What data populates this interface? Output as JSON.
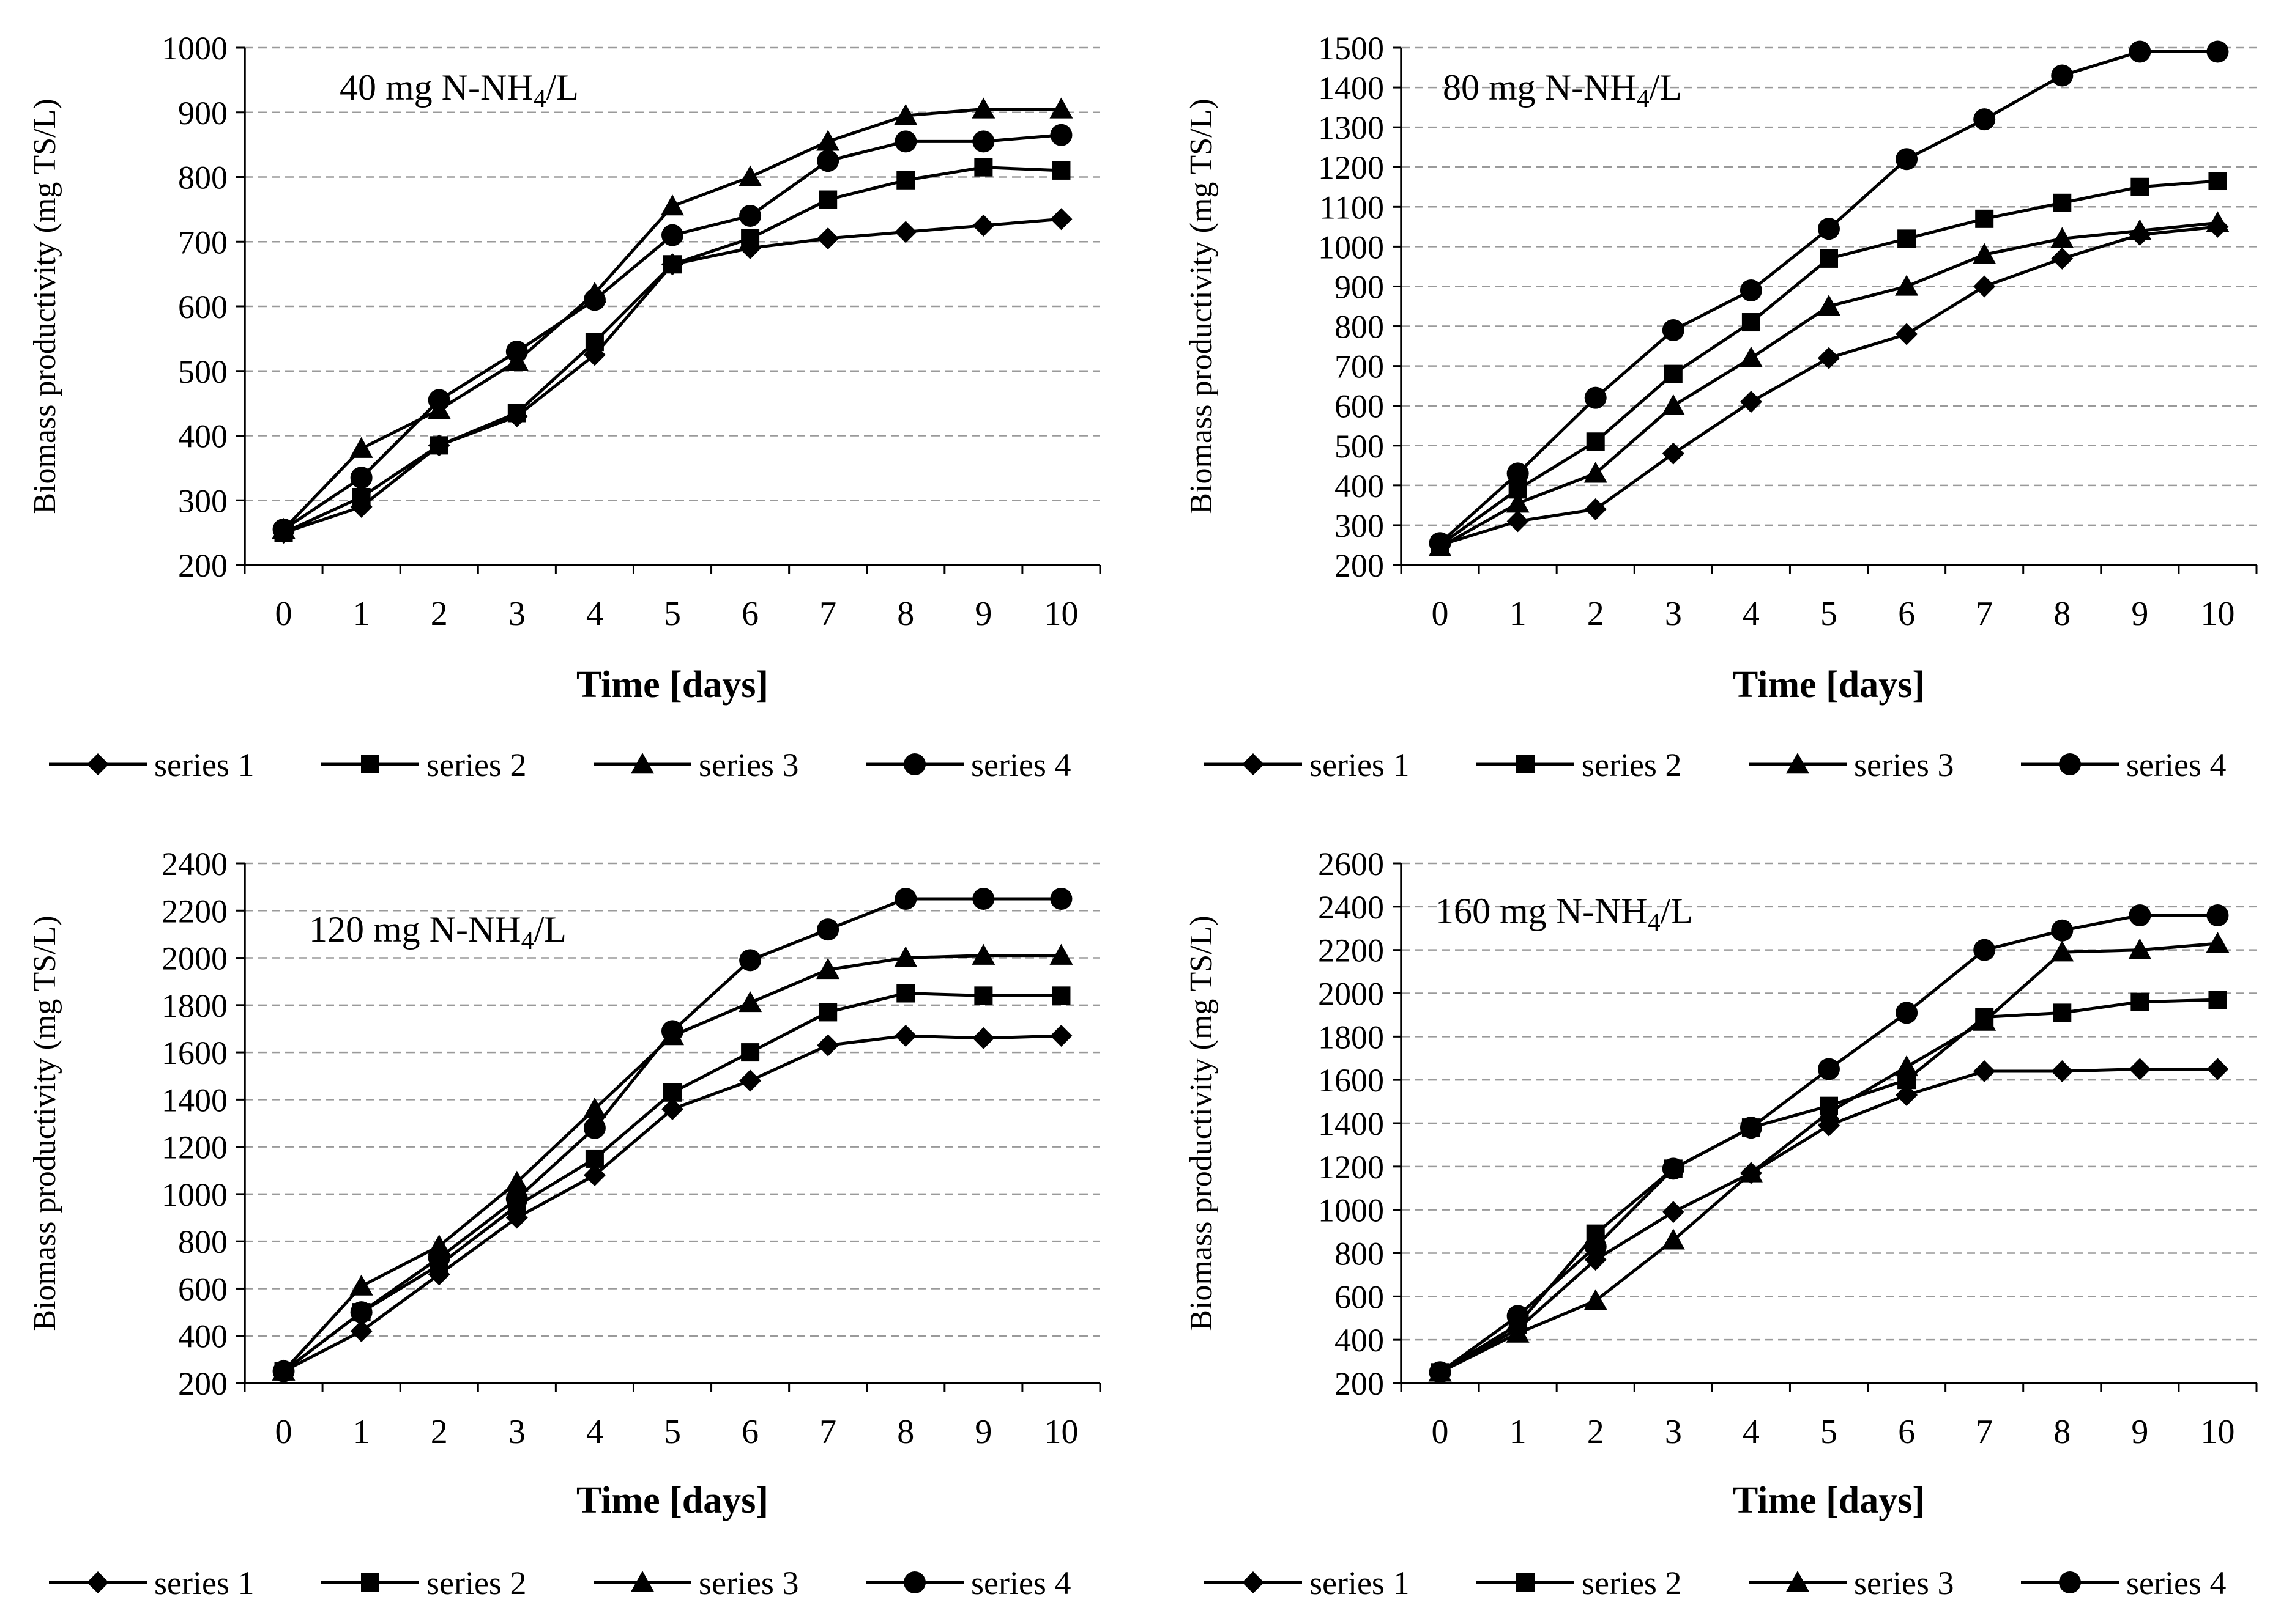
{
  "figure": {
    "xlabel": "Time [days]",
    "ylabel": "Biomass productivity (mg TS/L)",
    "legend": [
      "series 1",
      "series 2",
      "series 3",
      "series 4"
    ],
    "markers": [
      "diamond",
      "square",
      "triangle",
      "circle"
    ],
    "line_color": "#000000",
    "grid_color": "#9a9a9a"
  },
  "chart_data": [
    {
      "type": "line",
      "title_pre": "40 mg N-NH",
      "title_sub": "4",
      "title_post": "/L",
      "xlabel": "Time [days]",
      "ylabel": "Biomass productivity (mg TS/L)",
      "x": [
        0,
        1,
        2,
        3,
        4,
        5,
        6,
        7,
        8,
        9,
        10
      ],
      "ylim": [
        200,
        1000
      ],
      "ytick_step": 100,
      "series": [
        {
          "name": "series 1",
          "marker": "diamond",
          "values": [
            250,
            290,
            385,
            430,
            525,
            665,
            690,
            705,
            715,
            725,
            735
          ]
        },
        {
          "name": "series 2",
          "marker": "square",
          "values": [
            250,
            305,
            385,
            435,
            545,
            665,
            705,
            765,
            795,
            815,
            810
          ]
        },
        {
          "name": "series 3",
          "marker": "triangle",
          "values": [
            255,
            380,
            440,
            515,
            620,
            755,
            800,
            855,
            895,
            905,
            905
          ]
        },
        {
          "name": "series 4",
          "marker": "circle",
          "values": [
            255,
            335,
            455,
            530,
            610,
            710,
            740,
            825,
            855,
            855,
            865
          ]
        }
      ]
    },
    {
      "type": "line",
      "title_pre": "80 mg N-NH",
      "title_sub": "4",
      "title_post": "/L",
      "xlabel": "Time [days]",
      "ylabel": "Biomass productivity (mg TS/L)",
      "x": [
        0,
        1,
        2,
        3,
        4,
        5,
        6,
        7,
        8,
        9,
        10
      ],
      "ylim": [
        200,
        1500
      ],
      "ytick_step": 100,
      "series": [
        {
          "name": "series 1",
          "marker": "diamond",
          "values": [
            250,
            310,
            340,
            480,
            610,
            720,
            780,
            900,
            970,
            1030,
            1050
          ]
        },
        {
          "name": "series 2",
          "marker": "square",
          "values": [
            250,
            390,
            510,
            680,
            810,
            970,
            1020,
            1070,
            1110,
            1150,
            1165
          ]
        },
        {
          "name": "series 3",
          "marker": "triangle",
          "values": [
            245,
            355,
            430,
            600,
            720,
            850,
            900,
            980,
            1020,
            1040,
            1060
          ]
        },
        {
          "name": "series 4",
          "marker": "circle",
          "values": [
            255,
            430,
            620,
            790,
            890,
            1045,
            1220,
            1320,
            1430,
            1490,
            1490
          ]
        }
      ]
    },
    {
      "type": "line",
      "title_pre": "120 mg N-NH",
      "title_sub": "4",
      "title_post": "/L",
      "xlabel": "Time [days]",
      "ylabel": "Biomass productivity (mg TS/L)",
      "x": [
        0,
        1,
        2,
        3,
        4,
        5,
        6,
        7,
        8,
        9,
        10
      ],
      "ylim": [
        200,
        2400
      ],
      "ytick_step": 200,
      "series": [
        {
          "name": "series 1",
          "marker": "diamond",
          "values": [
            250,
            420,
            660,
            900,
            1080,
            1360,
            1480,
            1630,
            1670,
            1660,
            1670
          ]
        },
        {
          "name": "series 2",
          "marker": "square",
          "values": [
            250,
            500,
            700,
            950,
            1150,
            1430,
            1600,
            1770,
            1850,
            1840,
            1840
          ]
        },
        {
          "name": "series 3",
          "marker": "triangle",
          "values": [
            250,
            610,
            780,
            1050,
            1360,
            1670,
            1810,
            1950,
            2000,
            2010,
            2010
          ]
        },
        {
          "name": "series 4",
          "marker": "circle",
          "values": [
            250,
            500,
            730,
            980,
            1280,
            1690,
            1990,
            2120,
            2250,
            2250,
            2250
          ]
        }
      ]
    },
    {
      "type": "line",
      "title_pre": "160 mg N-NH",
      "title_sub": "4",
      "title_post": "/L",
      "xlabel": "Time [days]",
      "ylabel": "Biomass productivity (mg TS/L)",
      "x": [
        0,
        1,
        2,
        3,
        4,
        5,
        6,
        7,
        8,
        9,
        10
      ],
      "ylim": [
        200,
        2600
      ],
      "ytick_step": 200,
      "series": [
        {
          "name": "series 1",
          "marker": "diamond",
          "values": [
            250,
            450,
            770,
            990,
            1170,
            1390,
            1530,
            1640,
            1640,
            1650,
            1650
          ]
        },
        {
          "name": "series 2",
          "marker": "square",
          "values": [
            250,
            470,
            890,
            1190,
            1380,
            1480,
            1600,
            1890,
            1910,
            1960,
            1970
          ]
        },
        {
          "name": "series 3",
          "marker": "triangle",
          "values": [
            250,
            430,
            580,
            860,
            1170,
            1450,
            1660,
            1870,
            2190,
            2200,
            2230
          ]
        },
        {
          "name": "series 4",
          "marker": "circle",
          "values": [
            250,
            510,
            830,
            1190,
            1380,
            1650,
            1910,
            2200,
            2290,
            2360,
            2360
          ]
        }
      ]
    }
  ]
}
